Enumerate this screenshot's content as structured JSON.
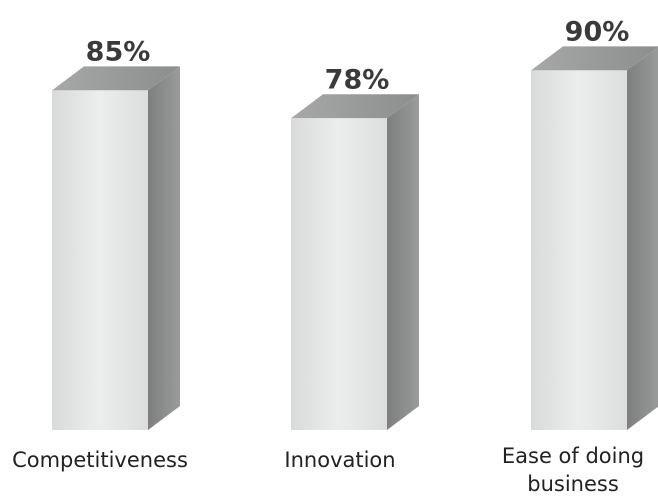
{
  "chart_data": {
    "type": "bar",
    "categories": [
      "Competitiveness",
      "Innovation",
      "Ease of doing\nbusiness"
    ],
    "values": [
      85,
      78,
      90
    ],
    "value_labels": [
      "85%",
      "78%",
      "90%"
    ],
    "title": "",
    "xlabel": "",
    "ylabel": "",
    "ylim": [
      0,
      100
    ],
    "grid": false,
    "legend": "none",
    "style": "3d-columns",
    "colors": {
      "front": "#e6e7e7",
      "side": "#8a8b8b",
      "top": "#9c9d9d",
      "label": "#3a3a3a"
    }
  }
}
